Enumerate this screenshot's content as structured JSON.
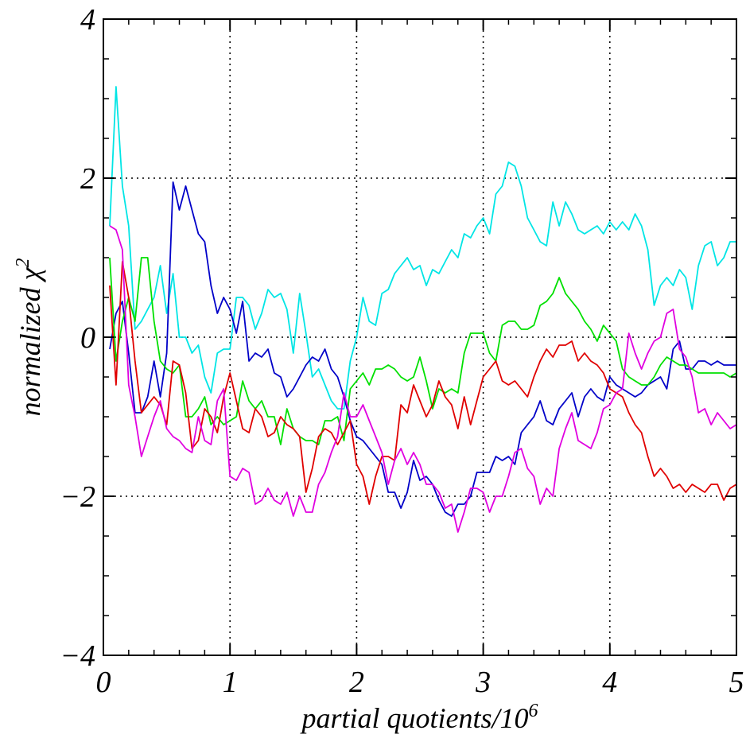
{
  "chart_data": {
    "type": "line",
    "title": "",
    "xlabel": "partial quotients/10",
    "xlabel_superscript": "6",
    "ylabel": "normalized χ",
    "ylabel_superscript": "2",
    "xlim": [
      0,
      5
    ],
    "ylim": [
      -4,
      4
    ],
    "xticks": [
      0,
      1,
      2,
      3,
      4,
      5
    ],
    "xtick_labels": [
      "0",
      "1",
      "2",
      "3",
      "4",
      "5"
    ],
    "yticks": [
      -4,
      -2,
      0,
      2,
      4
    ],
    "ytick_labels": [
      "−4",
      "−2",
      "0",
      "2",
      "4"
    ],
    "grid": true,
    "grid_style": "dotted",
    "legend": "none",
    "series": [
      {
        "color": "#00e5e5",
        "x": [
          0.05,
          0.1,
          0.15,
          0.2,
          0.25,
          0.3,
          0.35,
          0.4,
          0.45,
          0.5,
          0.55,
          0.6,
          0.65,
          0.7,
          0.75,
          0.8,
          0.85,
          0.9,
          0.95,
          1.0,
          1.05,
          1.1,
          1.15,
          1.2,
          1.25,
          1.3,
          1.35,
          1.4,
          1.45,
          1.5,
          1.55,
          1.6,
          1.65,
          1.7,
          1.75,
          1.8,
          1.85,
          1.9,
          1.95,
          2.0,
          2.05,
          2.1,
          2.15,
          2.2,
          2.25,
          2.3,
          2.35,
          2.4,
          2.45,
          2.5,
          2.55,
          2.6,
          2.65,
          2.7,
          2.75,
          2.8,
          2.85,
          2.9,
          2.95,
          3.0,
          3.05,
          3.1,
          3.15,
          3.2,
          3.25,
          3.3,
          3.35,
          3.4,
          3.45,
          3.5,
          3.55,
          3.6,
          3.65,
          3.7,
          3.75,
          3.8,
          3.85,
          3.9,
          3.95,
          4.0,
          4.05,
          4.1,
          4.15,
          4.2,
          4.25,
          4.3,
          4.35,
          4.4,
          4.45,
          4.5,
          4.55,
          4.6,
          4.65,
          4.7,
          4.75,
          4.8,
          4.85,
          4.9,
          4.95,
          5.0
        ],
        "y": [
          1.4,
          3.15,
          1.9,
          1.4,
          0.1,
          0.2,
          0.35,
          0.5,
          0.9,
          0.3,
          0.8,
          0.0,
          0.0,
          -0.2,
          -0.1,
          -0.5,
          -0.7,
          -0.2,
          -0.15,
          -0.15,
          0.5,
          0.5,
          0.4,
          0.1,
          0.3,
          0.6,
          0.5,
          0.55,
          0.35,
          -0.2,
          0.55,
          0.05,
          -0.5,
          -0.4,
          -0.6,
          -0.8,
          -0.9,
          -0.9,
          -0.3,
          0.0,
          0.5,
          0.2,
          0.15,
          0.55,
          0.6,
          0.8,
          0.9,
          1.0,
          0.85,
          0.9,
          0.65,
          0.85,
          0.8,
          0.95,
          1.1,
          1.0,
          1.3,
          1.25,
          1.4,
          1.5,
          1.3,
          1.8,
          1.9,
          2.2,
          2.15,
          1.9,
          1.5,
          1.35,
          1.2,
          1.15,
          1.7,
          1.4,
          1.7,
          1.55,
          1.35,
          1.3,
          1.35,
          1.4,
          1.3,
          1.45,
          1.35,
          1.45,
          1.35,
          1.55,
          1.4,
          1.1,
          0.4,
          0.65,
          0.75,
          0.65,
          0.85,
          0.75,
          0.35,
          0.9,
          1.15,
          1.2,
          0.9,
          1.0,
          1.2,
          1.2
        ]
      },
      {
        "color": "#0000c8",
        "x": [
          0.05,
          0.1,
          0.15,
          0.2,
          0.25,
          0.3,
          0.35,
          0.4,
          0.45,
          0.5,
          0.55,
          0.6,
          0.65,
          0.7,
          0.75,
          0.8,
          0.85,
          0.9,
          0.95,
          1.0,
          1.05,
          1.1,
          1.15,
          1.2,
          1.25,
          1.3,
          1.35,
          1.4,
          1.45,
          1.5,
          1.55,
          1.6,
          1.65,
          1.7,
          1.75,
          1.8,
          1.85,
          1.9,
          1.95,
          2.0,
          2.05,
          2.1,
          2.15,
          2.2,
          2.25,
          2.3,
          2.35,
          2.4,
          2.45,
          2.5,
          2.55,
          2.6,
          2.65,
          2.7,
          2.75,
          2.8,
          2.85,
          2.9,
          2.95,
          3.0,
          3.05,
          3.1,
          3.15,
          3.2,
          3.25,
          3.3,
          3.35,
          3.4,
          3.45,
          3.5,
          3.55,
          3.6,
          3.65,
          3.7,
          3.75,
          3.8,
          3.85,
          3.9,
          3.95,
          4.0,
          4.05,
          4.1,
          4.15,
          4.2,
          4.25,
          4.3,
          4.35,
          4.4,
          4.45,
          4.5,
          4.55,
          4.6,
          4.65,
          4.7,
          4.75,
          4.8,
          4.85,
          4.9,
          4.95,
          5.0
        ],
        "y": [
          -0.15,
          0.3,
          0.45,
          -0.2,
          -0.95,
          -0.95,
          -0.75,
          -0.3,
          -0.75,
          -0.2,
          1.95,
          1.6,
          1.9,
          1.6,
          1.3,
          1.2,
          0.65,
          0.3,
          0.5,
          0.35,
          0.05,
          0.45,
          -0.3,
          -0.2,
          -0.25,
          -0.15,
          -0.45,
          -0.5,
          -0.75,
          -0.65,
          -0.5,
          -0.35,
          -0.25,
          -0.3,
          -0.15,
          -0.4,
          -0.5,
          -0.75,
          -1.05,
          -1.25,
          -1.3,
          -1.4,
          -1.5,
          -1.6,
          -1.95,
          -1.95,
          -2.15,
          -1.95,
          -1.55,
          -1.8,
          -1.75,
          -1.85,
          -2.05,
          -2.2,
          -2.25,
          -2.1,
          -2.1,
          -2.0,
          -1.7,
          -1.7,
          -1.7,
          -1.5,
          -1.55,
          -1.5,
          -1.6,
          -1.2,
          -1.1,
          -1.0,
          -0.8,
          -1.05,
          -1.1,
          -0.9,
          -0.8,
          -0.7,
          -1.0,
          -0.75,
          -0.65,
          -0.75,
          -0.8,
          -0.5,
          -0.6,
          -0.65,
          -0.7,
          -0.75,
          -0.7,
          -0.6,
          -0.55,
          -0.5,
          -0.65,
          -0.15,
          -0.05,
          -0.4,
          -0.4,
          -0.3,
          -0.3,
          -0.35,
          -0.3,
          -0.35,
          -0.35,
          -0.35
        ]
      },
      {
        "color": "#00e000",
        "x": [
          0.05,
          0.1,
          0.15,
          0.2,
          0.25,
          0.3,
          0.35,
          0.4,
          0.45,
          0.5,
          0.55,
          0.6,
          0.65,
          0.7,
          0.75,
          0.8,
          0.85,
          0.9,
          0.95,
          1.0,
          1.05,
          1.1,
          1.15,
          1.2,
          1.25,
          1.3,
          1.35,
          1.4,
          1.45,
          1.5,
          1.55,
          1.6,
          1.65,
          1.7,
          1.75,
          1.8,
          1.85,
          1.9,
          1.95,
          2.0,
          2.05,
          2.1,
          2.15,
          2.2,
          2.25,
          2.3,
          2.35,
          2.4,
          2.45,
          2.5,
          2.55,
          2.6,
          2.65,
          2.7,
          2.75,
          2.8,
          2.85,
          2.9,
          2.95,
          3.0,
          3.05,
          3.1,
          3.15,
          3.2,
          3.25,
          3.3,
          3.35,
          3.4,
          3.45,
          3.5,
          3.55,
          3.6,
          3.65,
          3.7,
          3.75,
          3.8,
          3.85,
          3.9,
          3.95,
          4.0,
          4.05,
          4.1,
          4.15,
          4.2,
          4.25,
          4.3,
          4.35,
          4.4,
          4.45,
          4.5,
          4.55,
          4.6,
          4.65,
          4.7,
          4.75,
          4.8,
          4.85,
          4.9,
          4.95,
          5.0
        ],
        "y": [
          1.0,
          -0.3,
          0.2,
          0.5,
          0.2,
          1.0,
          1.0,
          0.2,
          -0.3,
          -0.4,
          -0.45,
          -0.35,
          -1.0,
          -1.0,
          -0.9,
          -0.75,
          -1.1,
          -1.0,
          -1.1,
          -1.05,
          -1.0,
          -0.55,
          -0.8,
          -0.9,
          -0.8,
          -1.0,
          -1.0,
          -1.35,
          -0.9,
          -1.15,
          -1.25,
          -1.3,
          -1.3,
          -1.35,
          -1.05,
          -1.05,
          -1.0,
          -1.3,
          -0.65,
          -0.55,
          -0.45,
          -0.6,
          -0.4,
          -0.4,
          -0.35,
          -0.4,
          -0.5,
          -0.55,
          -0.5,
          -0.25,
          -0.55,
          -0.9,
          -0.65,
          -0.7,
          -0.65,
          -0.7,
          -0.2,
          0.05,
          0.05,
          0.05,
          -0.2,
          -0.3,
          0.15,
          0.2,
          0.2,
          0.1,
          0.1,
          0.15,
          0.4,
          0.45,
          0.55,
          0.75,
          0.55,
          0.45,
          0.35,
          0.2,
          0.1,
          -0.05,
          0.15,
          0.05,
          -0.05,
          -0.4,
          -0.5,
          -0.55,
          -0.6,
          -0.6,
          -0.5,
          -0.35,
          -0.25,
          -0.3,
          -0.35,
          -0.35,
          -0.4,
          -0.45,
          -0.45,
          -0.45,
          -0.45,
          -0.45,
          -0.5,
          -0.45
        ]
      },
      {
        "color": "#e00000",
        "x": [
          0.05,
          0.1,
          0.15,
          0.2,
          0.25,
          0.3,
          0.35,
          0.4,
          0.45,
          0.5,
          0.55,
          0.6,
          0.65,
          0.7,
          0.75,
          0.8,
          0.85,
          0.9,
          0.95,
          1.0,
          1.05,
          1.1,
          1.15,
          1.2,
          1.25,
          1.3,
          1.35,
          1.4,
          1.45,
          1.5,
          1.55,
          1.6,
          1.65,
          1.7,
          1.75,
          1.8,
          1.85,
          1.9,
          1.95,
          2.0,
          2.05,
          2.1,
          2.15,
          2.2,
          2.25,
          2.3,
          2.35,
          2.4,
          2.45,
          2.5,
          2.55,
          2.6,
          2.65,
          2.7,
          2.75,
          2.8,
          2.85,
          2.9,
          2.95,
          3.0,
          3.05,
          3.1,
          3.15,
          3.2,
          3.25,
          3.3,
          3.35,
          3.4,
          3.45,
          3.5,
          3.55,
          3.6,
          3.65,
          3.7,
          3.75,
          3.8,
          3.85,
          3.9,
          3.95,
          4.0,
          4.05,
          4.1,
          4.15,
          4.2,
          4.25,
          4.3,
          4.35,
          4.4,
          4.45,
          4.5,
          4.55,
          4.6,
          4.65,
          4.7,
          4.75,
          4.8,
          4.85,
          4.9,
          4.95,
          5.0
        ],
        "y": [
          0.65,
          -0.6,
          0.95,
          0.5,
          -0.3,
          -0.95,
          -0.85,
          -0.75,
          -0.85,
          -1.1,
          -0.3,
          -0.35,
          -0.7,
          -1.4,
          -1.3,
          -0.9,
          -1.0,
          -1.2,
          -0.75,
          -0.45,
          -0.8,
          -1.15,
          -1.2,
          -0.9,
          -1.0,
          -1.25,
          -1.2,
          -1.0,
          -1.1,
          -1.15,
          -1.25,
          -1.95,
          -1.65,
          -1.25,
          -1.15,
          -1.2,
          -1.35,
          -1.2,
          -1.05,
          -1.6,
          -1.75,
          -2.1,
          -1.75,
          -1.5,
          -1.5,
          -1.55,
          -0.85,
          -0.95,
          -0.6,
          -0.8,
          -1.0,
          -0.85,
          -0.55,
          -0.75,
          -0.85,
          -1.15,
          -0.75,
          -1.1,
          -0.8,
          -0.5,
          -0.4,
          -0.3,
          -0.55,
          -0.6,
          -0.55,
          -0.65,
          -0.75,
          -0.5,
          -0.3,
          -0.15,
          -0.25,
          -0.1,
          -0.1,
          -0.05,
          -0.3,
          -0.2,
          -0.3,
          -0.35,
          -0.45,
          -0.65,
          -0.7,
          -0.75,
          -0.95,
          -1.1,
          -1.2,
          -1.5,
          -1.75,
          -1.65,
          -1.75,
          -1.9,
          -1.85,
          -1.95,
          -1.85,
          -1.9,
          -1.95,
          -1.85,
          -1.85,
          -2.05,
          -1.9,
          -1.85
        ]
      },
      {
        "color": "#e000e0",
        "x": [
          0.05,
          0.1,
          0.15,
          0.2,
          0.25,
          0.3,
          0.35,
          0.4,
          0.45,
          0.5,
          0.55,
          0.6,
          0.65,
          0.7,
          0.75,
          0.8,
          0.85,
          0.9,
          0.95,
          1.0,
          1.05,
          1.1,
          1.15,
          1.2,
          1.25,
          1.3,
          1.35,
          1.4,
          1.45,
          1.5,
          1.55,
          1.6,
          1.65,
          1.7,
          1.75,
          1.8,
          1.85,
          1.9,
          1.95,
          2.0,
          2.05,
          2.1,
          2.15,
          2.2,
          2.25,
          2.3,
          2.35,
          2.4,
          2.45,
          2.5,
          2.55,
          2.6,
          2.65,
          2.7,
          2.75,
          2.8,
          2.85,
          2.9,
          2.95,
          3.0,
          3.05,
          3.1,
          3.15,
          3.2,
          3.25,
          3.3,
          3.35,
          3.4,
          3.45,
          3.5,
          3.55,
          3.6,
          3.65,
          3.7,
          3.75,
          3.8,
          3.85,
          3.9,
          3.95,
          4.0,
          4.05,
          4.1,
          4.15,
          4.2,
          4.25,
          4.3,
          4.35,
          4.4,
          4.45,
          4.5,
          4.55,
          4.6,
          4.65,
          4.7,
          4.75,
          4.8,
          4.85,
          4.9,
          4.95,
          5.0
        ],
        "y": [
          1.4,
          1.35,
          1.1,
          -0.6,
          -1.0,
          -1.5,
          -1.25,
          -1.0,
          -0.8,
          -1.15,
          -1.25,
          -1.3,
          -1.4,
          -1.45,
          -1.0,
          -1.3,
          -1.35,
          -0.8,
          -0.65,
          -1.75,
          -1.8,
          -1.65,
          -1.7,
          -2.1,
          -2.05,
          -1.9,
          -2.05,
          -2.1,
          -1.95,
          -2.25,
          -2.0,
          -2.2,
          -2.2,
          -1.85,
          -1.7,
          -1.45,
          -1.25,
          -0.7,
          -1.0,
          -1.0,
          -0.85,
          -1.05,
          -1.25,
          -1.45,
          -1.85,
          -1.55,
          -1.4,
          -1.6,
          -1.45,
          -1.6,
          -1.85,
          -1.85,
          -1.95,
          -2.15,
          -2.1,
          -2.45,
          -2.2,
          -1.9,
          -1.9,
          -1.95,
          -2.2,
          -2.0,
          -2.0,
          -1.75,
          -1.45,
          -1.4,
          -1.65,
          -1.75,
          -2.1,
          -1.9,
          -2.0,
          -1.4,
          -1.15,
          -0.95,
          -1.3,
          -1.35,
          -1.4,
          -1.2,
          -0.9,
          -0.85,
          -0.7,
          -0.65,
          0.05,
          -0.2,
          -0.4,
          -0.2,
          -0.05,
          0.0,
          0.3,
          0.35,
          -0.15,
          -0.25,
          -0.5,
          -0.95,
          -0.9,
          -1.1,
          -0.95,
          -1.05,
          -1.15,
          -1.1
        ]
      }
    ]
  }
}
